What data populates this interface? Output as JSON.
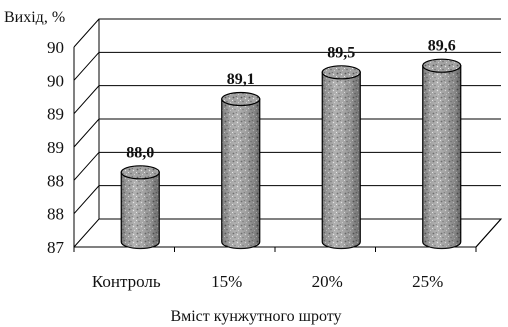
{
  "chart_data": {
    "type": "bar",
    "style": "3d-cylinder",
    "categories": [
      "Контроль",
      "15%",
      "20%",
      "25%"
    ],
    "values": [
      88.0,
      89.1,
      89.5,
      89.6
    ],
    "data_labels": [
      "88,0",
      "89,1",
      "89,5",
      "89,6"
    ],
    "ylabel": "Вихід, %",
    "xlabel": "Вміст кунжутного шроту",
    "y_tick_labels": [
      "87",
      "88",
      "88",
      "89",
      "89",
      "90",
      "90"
    ],
    "ylim": [
      87,
      90
    ],
    "grid": true,
    "legend": "none",
    "colors": {
      "bar_fill": "#9c9c9c",
      "bar_top": "#a8a8a8",
      "outline": "#000000",
      "grid": "#000000"
    }
  }
}
